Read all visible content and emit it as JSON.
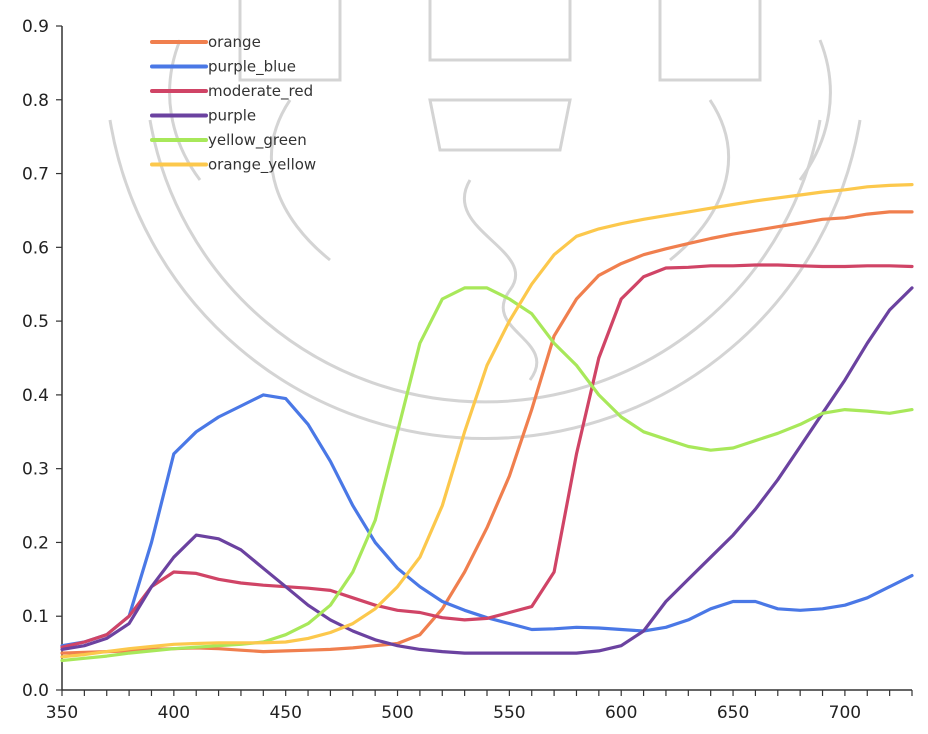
{
  "colors": {
    "axis": "#333333",
    "watermark": "#d4d4d4"
  },
  "chart_data": {
    "type": "line",
    "title": "",
    "xlabel": "",
    "ylabel": "",
    "xlim": [
      350,
      730
    ],
    "ylim": [
      0.0,
      0.9
    ],
    "grid": false,
    "legend_position": "top-left",
    "x_ticks": [
      "350",
      "400",
      "450",
      "500",
      "550",
      "600",
      "650",
      "700"
    ],
    "y_ticks": [
      "0.0",
      "0.1",
      "0.2",
      "0.3",
      "0.4",
      "0.5",
      "0.6",
      "0.7",
      "0.8",
      "0.9"
    ],
    "x": [
      350,
      360,
      370,
      380,
      390,
      400,
      410,
      420,
      430,
      440,
      450,
      460,
      470,
      480,
      490,
      500,
      510,
      520,
      530,
      540,
      550,
      560,
      570,
      580,
      590,
      600,
      610,
      620,
      630,
      640,
      650,
      660,
      670,
      680,
      690,
      700,
      710,
      720,
      730
    ],
    "series": [
      {
        "name": "orange",
        "color": "#f07f4e",
        "values": [
          0.05,
          0.051,
          0.052,
          0.053,
          0.055,
          0.056,
          0.057,
          0.056,
          0.054,
          0.052,
          0.053,
          0.054,
          0.055,
          0.057,
          0.06,
          0.063,
          0.075,
          0.11,
          0.16,
          0.22,
          0.29,
          0.38,
          0.48,
          0.53,
          0.562,
          0.578,
          0.59,
          0.598,
          0.605,
          0.612,
          0.618,
          0.623,
          0.628,
          0.633,
          0.638,
          0.64,
          0.645,
          0.648,
          0.648
        ]
      },
      {
        "name": "purple_blue",
        "color": "#4a78e6",
        "values": [
          0.06,
          0.065,
          0.075,
          0.1,
          0.2,
          0.32,
          0.35,
          0.37,
          0.385,
          0.4,
          0.395,
          0.36,
          0.31,
          0.25,
          0.2,
          0.165,
          0.14,
          0.12,
          0.108,
          0.098,
          0.09,
          0.082,
          0.083,
          0.085,
          0.084,
          0.082,
          0.08,
          0.085,
          0.095,
          0.11,
          0.12,
          0.12,
          0.11,
          0.108,
          0.11,
          0.115,
          0.125,
          0.14,
          0.155
        ]
      },
      {
        "name": "moderate_red",
        "color": "#d04466",
        "values": [
          0.058,
          0.065,
          0.075,
          0.1,
          0.14,
          0.16,
          0.158,
          0.15,
          0.145,
          0.142,
          0.14,
          0.138,
          0.135,
          0.125,
          0.115,
          0.108,
          0.105,
          0.098,
          0.095,
          0.097,
          0.105,
          0.113,
          0.16,
          0.32,
          0.45,
          0.53,
          0.56,
          0.572,
          0.573,
          0.575,
          0.575,
          0.576,
          0.576,
          0.575,
          0.574,
          0.574,
          0.575,
          0.575,
          0.574
        ]
      },
      {
        "name": "purple",
        "color": "#6b42a0",
        "values": [
          0.055,
          0.06,
          0.07,
          0.09,
          0.14,
          0.18,
          0.21,
          0.205,
          0.19,
          0.165,
          0.14,
          0.115,
          0.095,
          0.08,
          0.068,
          0.06,
          0.055,
          0.052,
          0.05,
          0.05,
          0.05,
          0.05,
          0.05,
          0.05,
          0.053,
          0.06,
          0.08,
          0.12,
          0.15,
          0.18,
          0.21,
          0.245,
          0.285,
          0.33,
          0.375,
          0.42,
          0.47,
          0.515,
          0.545
        ]
      },
      {
        "name": "yellow_green",
        "color": "#a8e85a",
        "values": [
          0.04,
          0.043,
          0.046,
          0.05,
          0.053,
          0.056,
          0.058,
          0.06,
          0.062,
          0.065,
          0.075,
          0.09,
          0.115,
          0.16,
          0.23,
          0.35,
          0.47,
          0.53,
          0.545,
          0.545,
          0.53,
          0.51,
          0.47,
          0.44,
          0.4,
          0.37,
          0.35,
          0.34,
          0.33,
          0.325,
          0.328,
          0.338,
          0.348,
          0.36,
          0.375,
          0.38,
          0.378,
          0.375,
          0.38
        ]
      },
      {
        "name": "orange_yellow",
        "color": "#fcc84c",
        "values": [
          0.045,
          0.048,
          0.052,
          0.056,
          0.059,
          0.062,
          0.063,
          0.064,
          0.064,
          0.064,
          0.065,
          0.07,
          0.078,
          0.09,
          0.11,
          0.14,
          0.18,
          0.25,
          0.35,
          0.44,
          0.5,
          0.55,
          0.59,
          0.615,
          0.625,
          0.632,
          0.638,
          0.643,
          0.648,
          0.653,
          0.658,
          0.663,
          0.667,
          0.671,
          0.675,
          0.678,
          0.682,
          0.684,
          0.685
        ]
      }
    ]
  }
}
